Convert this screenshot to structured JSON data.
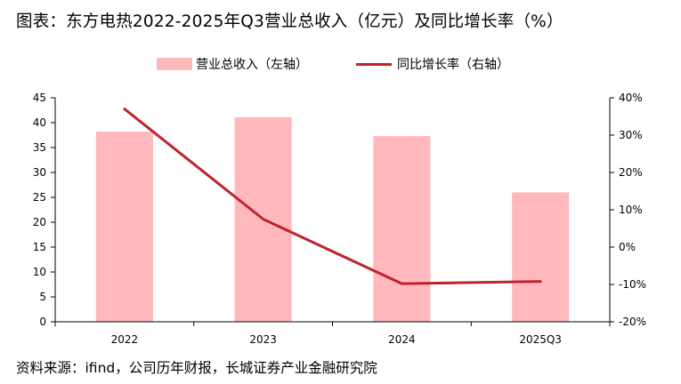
{
  "title": "图表：东方电热2022-2025年Q3营业总收入（亿元）及同比增长率（%）",
  "legend": {
    "bar_label": "营业总收入（左轴）",
    "line_label": "同比增长率（右轴）"
  },
  "source": "资料来源：ifind，公司历年财报，长城证券产业金融研究院",
  "colors": {
    "bar": "#ffb9bc",
    "line": "#c0222e",
    "axis": "#000000"
  },
  "chart_data": {
    "type": "bar",
    "categories": [
      "2022",
      "2023",
      "2024",
      "2025Q3"
    ],
    "series": [
      {
        "name": "营业总收入（左轴）",
        "type": "bar",
        "axis": "left",
        "values": [
          38.2,
          41.1,
          37.3,
          26.0
        ]
      },
      {
        "name": "同比增长率（右轴）",
        "type": "line",
        "axis": "right",
        "values": [
          37.0,
          7.5,
          -9.8,
          -9.2
        ]
      }
    ],
    "left_axis": {
      "ylim": [
        0,
        45
      ],
      "ticks": [
        "0",
        "5",
        "10",
        "15",
        "20",
        "25",
        "30",
        "35",
        "40",
        "45"
      ]
    },
    "right_axis": {
      "ylim": [
        -20,
        40
      ],
      "ticks": [
        "-20%",
        "-10%",
        "0%",
        "10%",
        "20%",
        "30%",
        "40%"
      ]
    },
    "grid": false,
    "legend_position": "top"
  }
}
